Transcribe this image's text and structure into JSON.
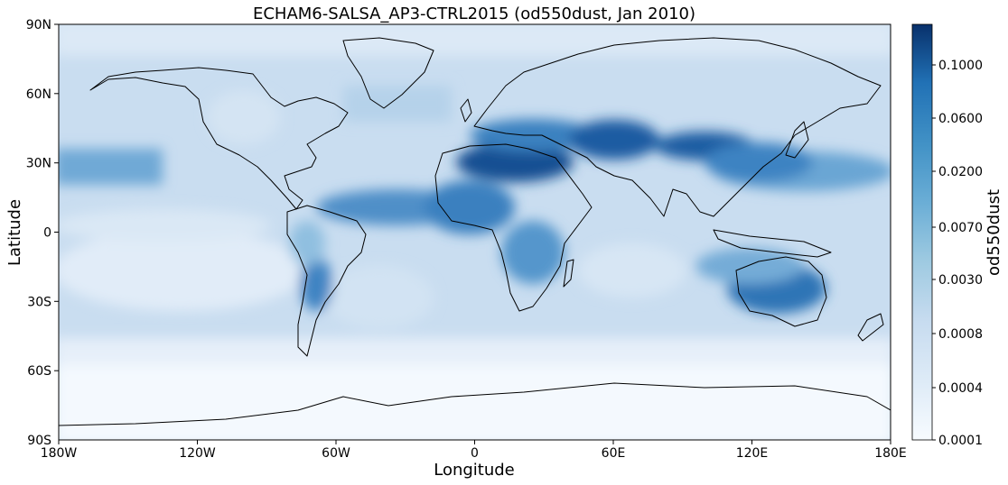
{
  "title": "ECHAM6-SALSA_AP3-CTRL2015 (od550dust, Jan 2010)",
  "axes": {
    "xlabel": "Longitude",
    "ylabel": "Latitude",
    "xticks": [
      {
        "value": -180,
        "label": "180W"
      },
      {
        "value": -120,
        "label": "120W"
      },
      {
        "value": -60,
        "label": "60W"
      },
      {
        "value": 0,
        "label": "0"
      },
      {
        "value": 60,
        "label": "60E"
      },
      {
        "value": 120,
        "label": "120E"
      },
      {
        "value": 180,
        "label": "180E"
      }
    ],
    "yticks": [
      {
        "value": 90,
        "label": "90N"
      },
      {
        "value": 60,
        "label": "60N"
      },
      {
        "value": 30,
        "label": "30N"
      },
      {
        "value": 0,
        "label": "0"
      },
      {
        "value": -30,
        "label": "30S"
      },
      {
        "value": -60,
        "label": "60S"
      },
      {
        "value": -90,
        "label": "90S"
      }
    ],
    "xlim": [
      -180,
      180
    ],
    "ylim": [
      -90,
      90
    ]
  },
  "colorbar": {
    "label": "od550dust",
    "ticks": [
      "0.0001",
      "0.0004",
      "0.0008",
      "0.0030",
      "0.0070",
      "0.0200",
      "0.0600",
      "0.1000"
    ],
    "colormap": "Blues",
    "low_color": "#f7fbff",
    "high_color": "#08306b"
  },
  "chart_data": {
    "type": "heatmap",
    "title": "ECHAM6-SALSA_AP3-CTRL2015 (od550dust, Jan 2010)",
    "xlabel": "Longitude",
    "ylabel": "Latitude",
    "variable": "od550dust",
    "xlim": [
      -180,
      180
    ],
    "ylim": [
      -90,
      90
    ],
    "colorbar_levels": [
      0.0001,
      0.0004,
      0.0008,
      0.003,
      0.007,
      0.02,
      0.06,
      0.1
    ],
    "regions": [
      {
        "label": "Sahara",
        "lon": [
          -15,
          35
        ],
        "lat": [
          15,
          35
        ],
        "value": 0.1
      },
      {
        "label": "Middle East / Central Asia",
        "lon": [
          40,
          80
        ],
        "lat": [
          30,
          45
        ],
        "value": 0.07
      },
      {
        "label": "Taklamakan / Gobi",
        "lon": [
          80,
          115
        ],
        "lat": [
          33,
          45
        ],
        "value": 0.08
      },
      {
        "label": "West Africa",
        "lon": [
          -20,
          15
        ],
        "lat": [
          0,
          15
        ],
        "value": 0.03
      },
      {
        "label": "Tropical Atlantic plume",
        "lon": [
          -60,
          -20
        ],
        "lat": [
          0,
          15
        ],
        "value": 0.02
      },
      {
        "label": "Southern Africa",
        "lon": [
          15,
          35
        ],
        "lat": [
          -30,
          0
        ],
        "value": 0.02
      },
      {
        "label": "Australia",
        "lon": [
          115,
          150
        ],
        "lat": [
          -35,
          -18
        ],
        "value": 0.04
      },
      {
        "label": "Patagonia / Andes",
        "lon": [
          -75,
          -60
        ],
        "lat": [
          -45,
          -15
        ],
        "value": 0.02
      },
      {
        "label": "North Pacific belt",
        "lon": [
          120,
          180
        ],
        "lat": [
          20,
          40
        ],
        "value": 0.015
      },
      {
        "label": "North America",
        "lon": [
          -125,
          -70
        ],
        "lat": [
          25,
          60
        ],
        "value": 0.005
      },
      {
        "label": "Southern Ocean",
        "lon": [
          -180,
          180
        ],
        "lat": [
          -60,
          -40
        ],
        "value": 0.003
      },
      {
        "label": "Antarctica",
        "lon": [
          -180,
          180
        ],
        "lat": [
          -90,
          -65
        ],
        "value": 0.0001
      },
      {
        "label": "Arctic",
        "lon": [
          -180,
          180
        ],
        "lat": [
          75,
          90
        ],
        "value": 0.0008
      }
    ]
  }
}
